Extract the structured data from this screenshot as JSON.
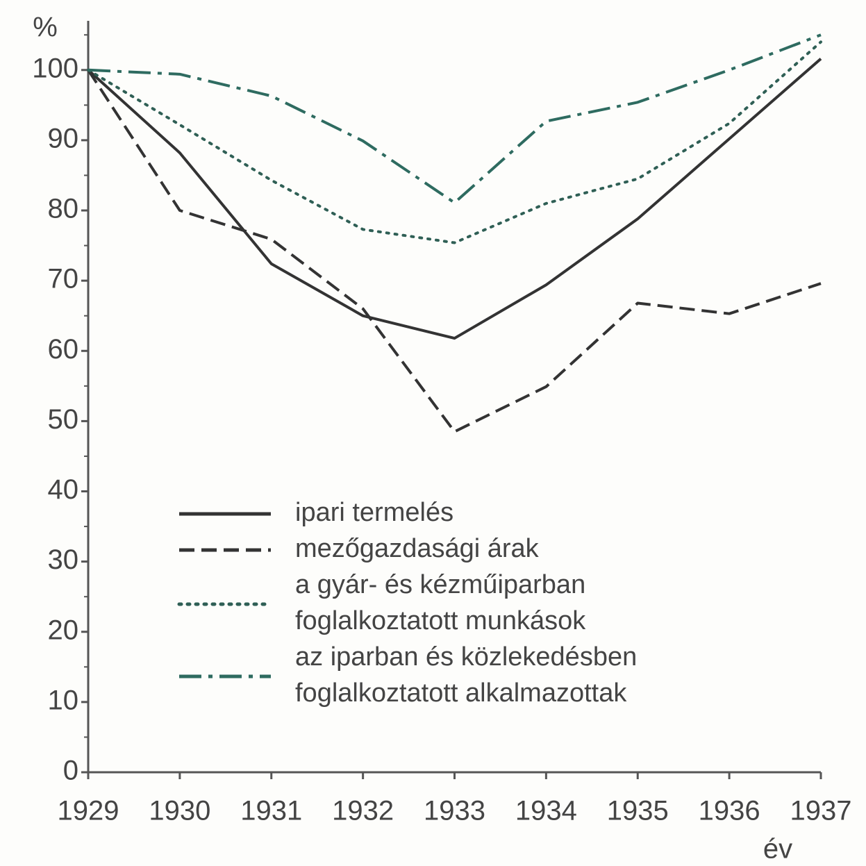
{
  "chart_data": {
    "type": "line",
    "y_label": "%",
    "x_label": "év",
    "x": [
      1929,
      1930,
      1931,
      1932,
      1933,
      1934,
      1935,
      1936,
      1937
    ],
    "xlim": [
      1929,
      1937
    ],
    "xticks": [
      1929,
      1930,
      1931,
      1932,
      1933,
      1934,
      1935,
      1936,
      1937
    ],
    "ylim": [
      0,
      107
    ],
    "yticks": [
      0,
      10,
      20,
      30,
      40,
      50,
      60,
      70,
      80,
      90,
      100
    ],
    "yminorticks": [
      5,
      15,
      25,
      35,
      45,
      55,
      65,
      75,
      85,
      95,
      105
    ],
    "grid": false,
    "legend": "lower center",
    "series": [
      {
        "name": "ipari termelés",
        "color": "#333333",
        "dash": "solid",
        "values": [
          100,
          88.2,
          72.4,
          65,
          61.8,
          69.4,
          78.8,
          90.2,
          101.6
        ]
      },
      {
        "name": "mezőgazdasági árak",
        "color": "#333333",
        "dash": "dashed",
        "values": [
          100,
          80,
          75.9,
          66,
          48.5,
          54.9,
          66.8,
          65.3,
          69.6
        ]
      },
      {
        "name": "a gyár- és kézműiparban\nfoglalkoztatott munkások",
        "color": "#2f5f55",
        "dash": "dotted",
        "values": [
          100,
          92.2,
          84.3,
          77.3,
          75.4,
          81,
          84.5,
          92.4,
          104
        ]
      },
      {
        "name": "az iparban és közlekedésben\nfoglalkoztatott alkalmazottak",
        "color": "#2e6b60",
        "dash": "dashdot",
        "values": [
          100,
          99.4,
          96.3,
          89.9,
          81.1,
          92.7,
          95.4,
          100,
          105
        ]
      }
    ]
  }
}
